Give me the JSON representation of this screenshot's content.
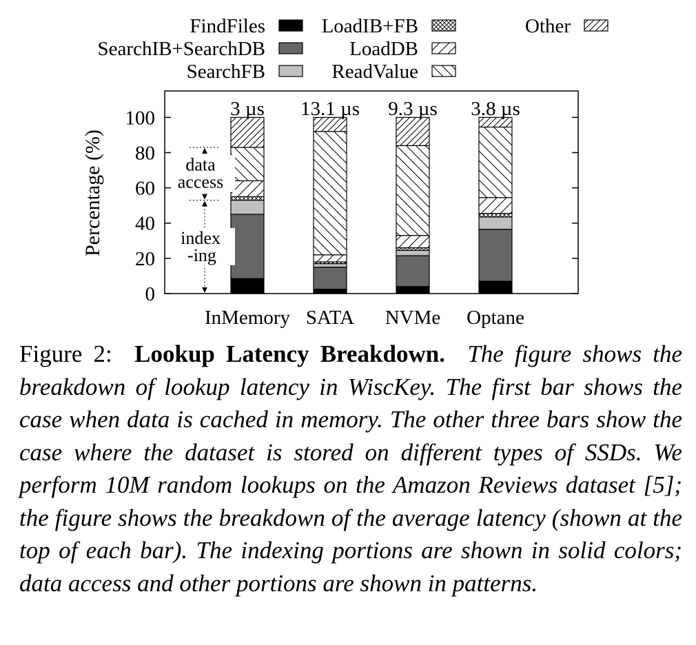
{
  "chart_data": {
    "type": "bar",
    "stacked": true,
    "categories": [
      "InMemory",
      "SATA",
      "NVMe",
      "Optane"
    ],
    "bar_top_labels": [
      "3 µs",
      "13.1 µs",
      "9.3 µs",
      "3.8 µs"
    ],
    "ylabel": "Percentage (%)",
    "ylim": [
      0,
      115
    ],
    "yticks": [
      0,
      20,
      40,
      60,
      80,
      100
    ],
    "grid": false,
    "legend_position": "top",
    "series": [
      {
        "name": "FindFiles",
        "pattern": "solid-black",
        "values": [
          8.5,
          2.5,
          4.0,
          7.0
        ]
      },
      {
        "name": "SearchIB+SearchDB",
        "pattern": "solid-gray",
        "values": [
          36.5,
          12.5,
          17.5,
          29.5
        ]
      },
      {
        "name": "SearchFB",
        "pattern": "solid-light",
        "values": [
          8.0,
          2.0,
          3.0,
          7.0
        ]
      },
      {
        "name": "LoadIB+FB",
        "pattern": "crosshatch",
        "values": [
          2.0,
          1.0,
          1.5,
          2.0
        ]
      },
      {
        "name": "LoadDB",
        "pattern": "hatch-up",
        "values": [
          9.0,
          4.0,
          7.0,
          9.0
        ]
      },
      {
        "name": "ReadValue",
        "pattern": "hatch-down",
        "values": [
          19.0,
          70.0,
          51.0,
          40.0
        ]
      },
      {
        "name": "Other",
        "pattern": "hatch-up-dense",
        "values": [
          17.0,
          8.0,
          16.0,
          5.5
        ]
      }
    ],
    "legend_order": [
      "FindFiles",
      "LoadIB+FB",
      "Other",
      "SearchIB+SearchDB",
      "LoadDB",
      "SearchFB",
      "ReadValue"
    ],
    "annotations": [
      {
        "text_lines": [
          "data",
          "access"
        ],
        "range": [
          53,
          83
        ]
      },
      {
        "text_lines": [
          "index",
          "-ing"
        ],
        "range": [
          0,
          53
        ]
      }
    ]
  },
  "caption": {
    "label": "Figure 2:",
    "title": "Lookup Latency Breakdown.",
    "body": "The figure shows the breakdown of lookup latency in WiscKey. The first bar shows the case when data is cached in memory. The other three bars show the case where the dataset is stored on different types of SSDs. We perform 10M random lookups on the Amazon Reviews dataset [5]; the figure shows the breakdown of the average latency (shown at the top of each bar). The indexing portions are shown in solid colors; data access and other portions are shown in patterns."
  }
}
